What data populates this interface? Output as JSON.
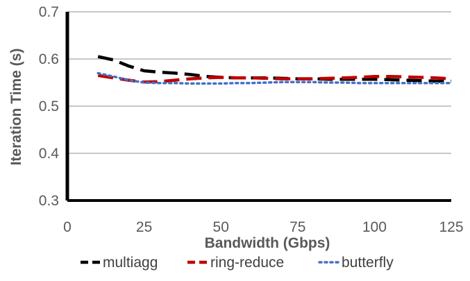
{
  "chart_data": {
    "type": "line",
    "title": "",
    "xlabel": "Bandwidth (Gbps)",
    "ylabel": "Iteration Time (s)",
    "xlim": [
      0,
      125
    ],
    "ylim": [
      0.3,
      0.7
    ],
    "x_ticks": [
      "0",
      "25",
      "50",
      "75",
      "100",
      "125"
    ],
    "y_ticks": [
      "0.3",
      "0.4",
      "0.5",
      "0.6",
      "0.7"
    ],
    "grid": "horizontal",
    "legend_position": "bottom",
    "series": [
      {
        "name": "multiagg",
        "color": "#000000",
        "dash": "dash",
        "x": [
          10,
          15,
          20,
          25,
          30,
          35,
          40,
          45,
          50,
          55,
          60,
          65,
          70,
          75,
          80,
          85,
          90,
          95,
          100,
          105,
          110,
          115,
          120,
          125
        ],
        "y": [
          0.605,
          0.598,
          0.585,
          0.575,
          0.572,
          0.57,
          0.567,
          0.563,
          0.561,
          0.56,
          0.56,
          0.56,
          0.559,
          0.558,
          0.558,
          0.557,
          0.557,
          0.557,
          0.557,
          0.556,
          0.555,
          0.554,
          0.553,
          0.553
        ]
      },
      {
        "name": "ring-reduce",
        "color": "#c00000",
        "dash": "dash",
        "x": [
          10,
          15,
          20,
          25,
          30,
          35,
          40,
          45,
          50,
          55,
          60,
          65,
          70,
          75,
          80,
          85,
          90,
          95,
          100,
          105,
          110,
          115,
          120,
          125
        ],
        "y": [
          0.565,
          0.56,
          0.555,
          0.551,
          0.552,
          0.555,
          0.558,
          0.56,
          0.561,
          0.56,
          0.56,
          0.559,
          0.558,
          0.558,
          0.558,
          0.559,
          0.56,
          0.561,
          0.563,
          0.563,
          0.562,
          0.561,
          0.56,
          0.558
        ]
      },
      {
        "name": "butterfly",
        "color": "#4472c4",
        "dash": "dot",
        "x": [
          10,
          15,
          20,
          25,
          30,
          35,
          40,
          45,
          50,
          55,
          60,
          65,
          70,
          75,
          80,
          85,
          90,
          95,
          100,
          105,
          110,
          115,
          120,
          125
        ],
        "y": [
          0.57,
          0.563,
          0.555,
          0.55,
          0.549,
          0.549,
          0.548,
          0.548,
          0.548,
          0.549,
          0.549,
          0.55,
          0.551,
          0.551,
          0.551,
          0.55,
          0.55,
          0.549,
          0.549,
          0.549,
          0.549,
          0.549,
          0.549,
          0.549
        ]
      }
    ]
  }
}
